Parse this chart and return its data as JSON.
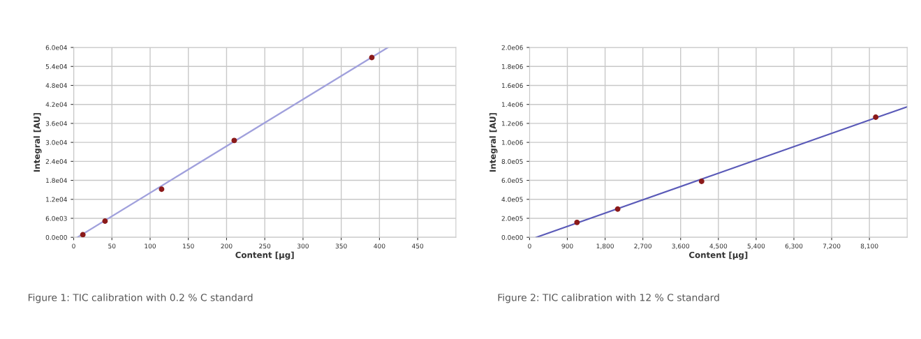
{
  "chart_data": [
    {
      "type": "scatter",
      "xlabel": "Content [µg]",
      "ylabel": "Integral [AU]",
      "annotations": [
        "Figure 1: TIC calibration with 0.2 % C standard"
      ],
      "grid": true,
      "xlim": [
        0,
        500
      ],
      "xticks": [
        0,
        50,
        100,
        150,
        200,
        250,
        300,
        350,
        400,
        450
      ],
      "ylim": [
        0,
        60000
      ],
      "yticks": [
        {
          "value": 0,
          "label": "0.0e00"
        },
        {
          "value": 6000,
          "label": "6.0e03"
        },
        {
          "value": 12000,
          "label": "1.2e04"
        },
        {
          "value": 18000,
          "label": "1.8e04"
        },
        {
          "value": 24000,
          "label": "2.4e04"
        },
        {
          "value": 30000,
          "label": "3.0e04"
        },
        {
          "value": 36000,
          "label": "3.6e04"
        },
        {
          "value": 42000,
          "label": "4.2e04"
        },
        {
          "value": 48000,
          "label": "4.8e04"
        },
        {
          "value": 54000,
          "label": "5.4e04"
        },
        {
          "value": 60000,
          "label": "6.0e04"
        }
      ],
      "series": [
        {
          "type": "line",
          "color": "#a0a0dc",
          "x": [
            5,
            411
          ],
          "values": [
            0,
            60000
          ]
        },
        {
          "marker": "circle",
          "color": "#8b1a1a",
          "x": [
            12,
            41,
            115,
            210,
            390
          ],
          "values": [
            800,
            5100,
            15200,
            30600,
            56800
          ]
        }
      ]
    },
    {
      "type": "scatter",
      "xlabel": "Content [µg]",
      "ylabel": "Integral [AU]",
      "annotations": [
        "Figure 2: TIC calibration with 12 % C standard"
      ],
      "grid": true,
      "xlim": [
        0,
        9000
      ],
      "xticks": [
        0,
        {
          "value": 900,
          "label": "900"
        },
        {
          "value": 1800,
          "label": "1,800"
        },
        {
          "value": 2700,
          "label": "2,700"
        },
        {
          "value": 3600,
          "label": "3,600"
        },
        {
          "value": 4500,
          "label": "4,500"
        },
        {
          "value": 5400,
          "label": "5,400"
        },
        {
          "value": 6300,
          "label": "6,300"
        },
        {
          "value": 7200,
          "label": "7,200"
        },
        {
          "value": 8100,
          "label": "8,100"
        }
      ],
      "ylim": [
        0,
        2000000
      ],
      "yticks": [
        {
          "value": 0,
          "label": "0.0e00"
        },
        {
          "value": 200000,
          "label": "2.0e05"
        },
        {
          "value": 400000,
          "label": "4.0e05"
        },
        {
          "value": 600000,
          "label": "6.0e05"
        },
        {
          "value": 800000,
          "label": "8.0e05"
        },
        {
          "value": 1000000,
          "label": "1.0e06"
        },
        {
          "value": 1200000,
          "label": "1.2e06"
        },
        {
          "value": 1400000,
          "label": "1.4e06"
        },
        {
          "value": 1600000,
          "label": "1.6e06"
        },
        {
          "value": 1800000,
          "label": "1.8e06"
        },
        {
          "value": 2000000,
          "label": "2.0e06"
        }
      ],
      "series": [
        {
          "type": "line",
          "color": "#5a5ab8",
          "x": [
            160,
            9000
          ],
          "values": [
            0,
            1375000
          ]
        },
        {
          "marker": "circle",
          "color": "#8b1a1a",
          "x": [
            1130,
            2100,
            4100,
            8250
          ],
          "values": [
            157000,
            297000,
            589000,
            1265000
          ]
        }
      ]
    }
  ]
}
